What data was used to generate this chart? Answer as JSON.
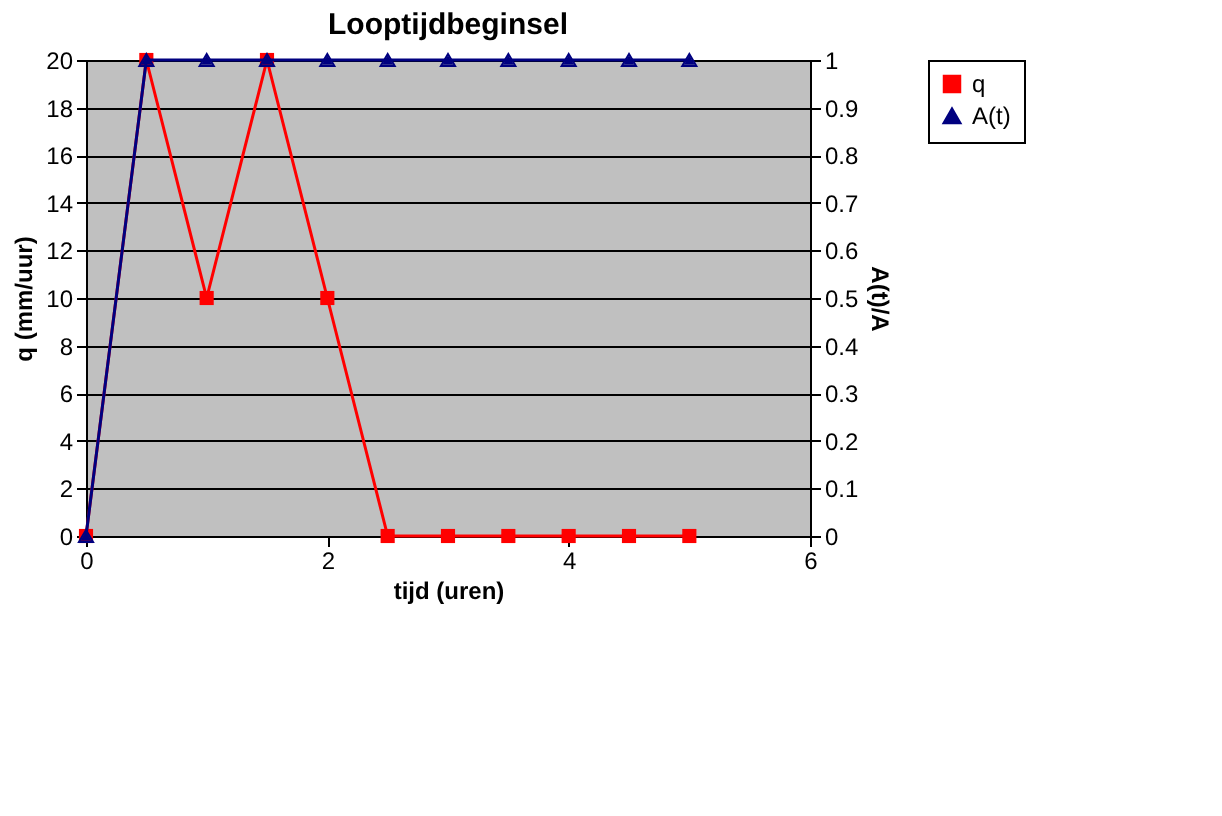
{
  "chart_data": {
    "type": "line",
    "title": "Looptijdbeginsel",
    "xlabel": "tijd (uren)",
    "ylabel": "q (mm/uur)",
    "y2label": "A(t)/A",
    "x": [
      0,
      0.5,
      1,
      1.5,
      2,
      2.5,
      3,
      3.5,
      4,
      4.5,
      5
    ],
    "series": [
      {
        "name": "q",
        "color": "#ff0000",
        "marker": "square",
        "values": [
          0,
          20,
          10,
          20,
          10,
          0,
          0,
          0,
          0,
          0,
          0
        ]
      },
      {
        "name": "A(t)",
        "color": "#000080",
        "marker": "triangle",
        "axis": "y2",
        "values": [
          0,
          1,
          1,
          1,
          1,
          1,
          1,
          1,
          1,
          1,
          1
        ]
      }
    ],
    "xlim": [
      0,
      6
    ],
    "xticks": [
      0,
      2,
      4,
      6
    ],
    "ylim": [
      0,
      20
    ],
    "yticks": [
      0,
      2,
      4,
      6,
      8,
      10,
      12,
      14,
      16,
      18,
      20
    ],
    "y2lim": [
      0,
      1
    ],
    "y2ticks": [
      0,
      0.1,
      0.2,
      0.3,
      0.4,
      0.5,
      0.6,
      0.7,
      0.8,
      0.9,
      1
    ],
    "grid": "y",
    "legend": "right",
    "line_style": "solid"
  }
}
